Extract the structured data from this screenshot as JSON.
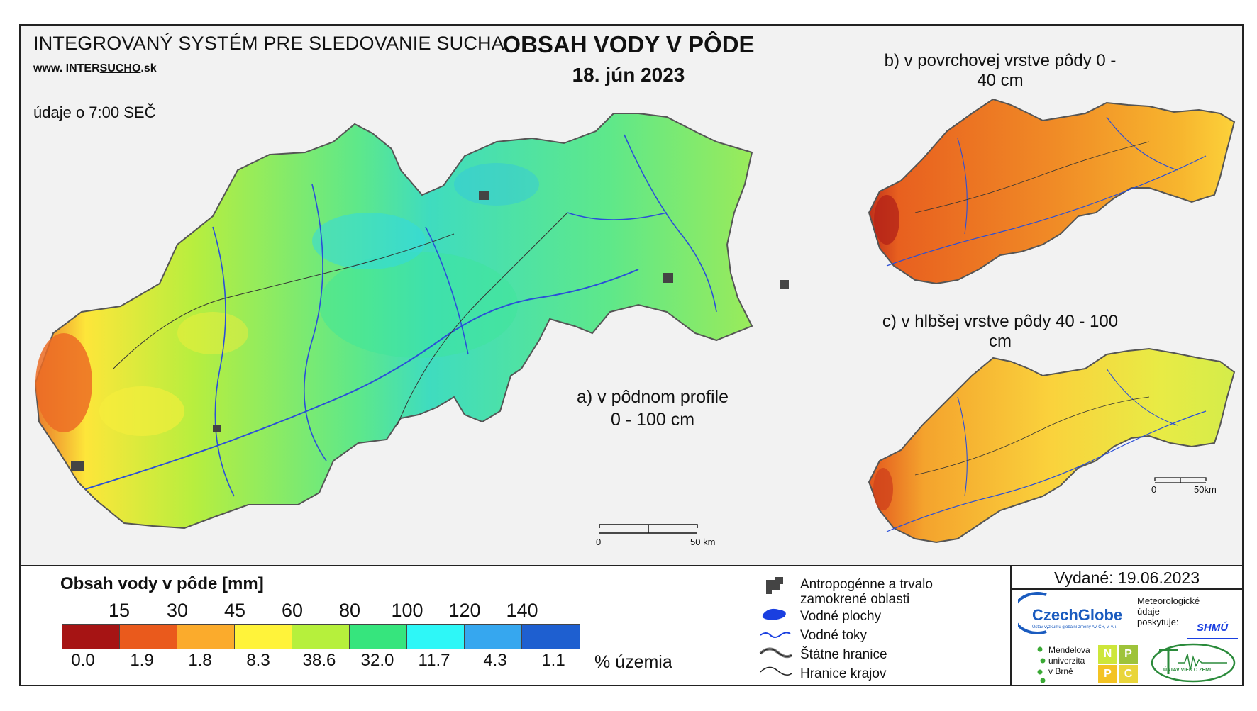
{
  "header": {
    "system_name": "INTEGROVANÝ SYSTÉM PRE SLEDOVANIE SUCHA",
    "website_prefix": "www.",
    "website_intersucho": "INTER",
    "website_sucho": "SUCHO",
    "website_suffix": ".sk",
    "time_note": "údaje o 7:00 SEČ",
    "title": "OBSAH VODY V PÔDE",
    "date": "18. jún 2023"
  },
  "maps": {
    "a": {
      "label_line1": "a) v pôdnom profile",
      "label_line2": "0 - 100 cm",
      "scale_start": "0",
      "scale_end": "50 km"
    },
    "b": {
      "label": "b) v povrchovej vrstve pôdy 0 - 40 cm"
    },
    "c": {
      "label": "c) v hlbšej vrstve pôdy 40 - 100 cm",
      "scale_start": "0",
      "scale_end": "50km"
    }
  },
  "legend": {
    "title": "Obsah vody v pôde  [mm]",
    "thresholds": [
      "15",
      "30",
      "45",
      "60",
      "80",
      "100",
      "120",
      "140"
    ],
    "classes": [
      {
        "color": "#a61414",
        "pct": "0.0"
      },
      {
        "color": "#ea5a1c",
        "pct": "1.9"
      },
      {
        "color": "#fbab2c",
        "pct": "1.8"
      },
      {
        "color": "#fff33a",
        "pct": "8.3"
      },
      {
        "color": "#b6f03c",
        "pct": "38.6"
      },
      {
        "color": "#36e57d",
        "pct": "32.0"
      },
      {
        "color": "#2ef7f7",
        "pct": "11.7"
      },
      {
        "color": "#36a7ef",
        "pct": "4.3"
      },
      {
        "color": "#1e5fd0",
        "pct": "1.1"
      }
    ],
    "pct_label": "% územia"
  },
  "symbols": {
    "anthropogenic_line1": "Antropogénne a trvalo",
    "anthropogenic_line2": "zamokrené oblasti",
    "water_bodies": "Vodné plochy",
    "water_courses": "Vodné toky",
    "state_borders": "Štátne hranice",
    "region_borders": "Hranice krajov"
  },
  "issued": "Vydané: 19.06.2023",
  "logos": {
    "czechglobe": "CzechGlobe",
    "czechglobe_sub": "Ústav výzkumu globální změny AV ČR, v. v. i.",
    "shmu_note_line1": "Meteorologické",
    "shmu_note_line2": "údaje",
    "shmu_note_line3": "poskytuje:",
    "shmu": "SHMÚ",
    "mendel_line1": "Mendelova",
    "mendel_line2": "univerzita",
    "mendel_line3": "v Brně",
    "nppc_letters": [
      "N",
      "P",
      "P",
      "C"
    ],
    "uvz": "ÚSTAV VIED O ZEMI"
  }
}
